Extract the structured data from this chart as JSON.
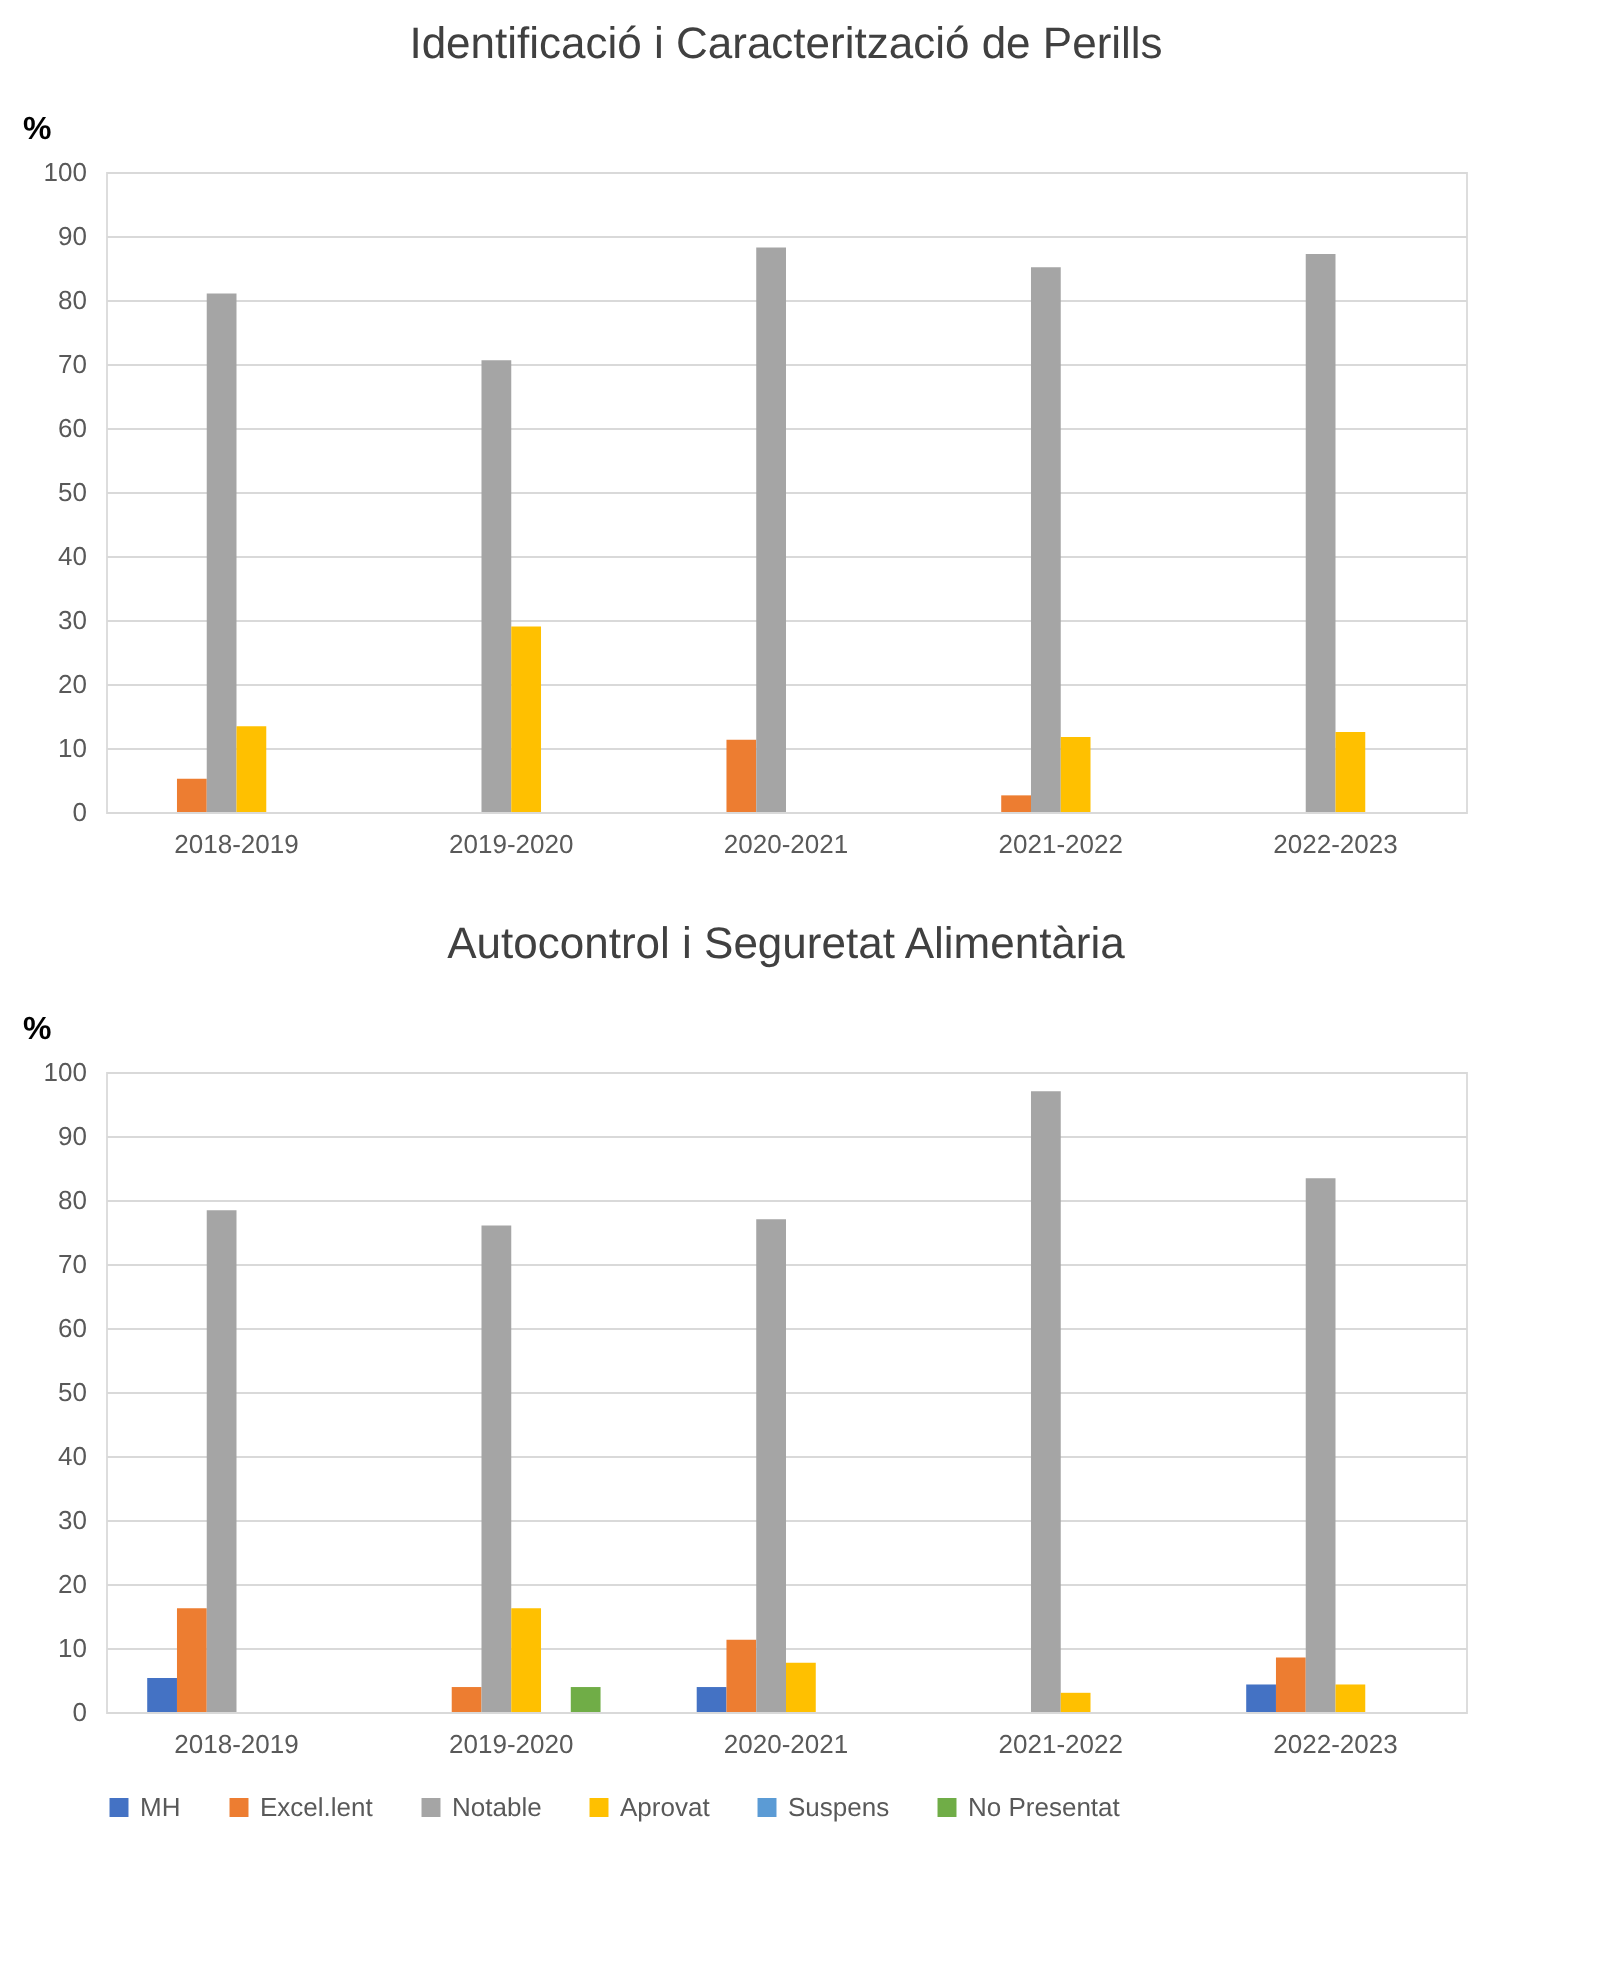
{
  "chart_data": [
    {
      "type": "bar",
      "title": "Identificació i Caracterització de Perills",
      "ylabel": "%",
      "categories": [
        "2018-2019",
        "2019-2020",
        "2020-2021",
        "2021-2022",
        "2022-2023"
      ],
      "ylim": [
        0,
        100
      ],
      "yticks": [
        0,
        10,
        20,
        30,
        40,
        50,
        60,
        70,
        80,
        90,
        100
      ],
      "grid": "y",
      "series": [
        {
          "color": "#4472c4",
          "values": [
            0,
            0,
            0,
            0,
            0
          ]
        },
        {
          "color": "#ed7d31",
          "values": [
            5.2,
            0,
            11.3,
            2.6,
            0
          ]
        },
        {
          "color": "#a5a5a5",
          "values": [
            81,
            70.6,
            88.2,
            85.1,
            87.2
          ]
        },
        {
          "color": "#ffc000",
          "values": [
            13.4,
            29,
            0,
            11.7,
            12.5
          ]
        },
        {
          "color": "#5b9bd5",
          "values": [
            0,
            0,
            0,
            0,
            0
          ]
        },
        {
          "color": "#70ad47",
          "values": [
            0,
            0,
            0,
            0,
            0
          ]
        }
      ]
    },
    {
      "type": "bar",
      "title": "Autocontrol i Seguretat Alimentària",
      "ylabel": "%",
      "categories": [
        "2018-2019",
        "2019-2020",
        "2020-2021",
        "2021-2022",
        "2022-2023"
      ],
      "ylim": [
        0,
        100
      ],
      "yticks": [
        0,
        10,
        20,
        30,
        40,
        50,
        60,
        70,
        80,
        90,
        100
      ],
      "grid": "y",
      "legend": "bottom",
      "series": [
        {
          "name": "MH",
          "color": "#4472c4",
          "values": [
            5.3,
            0,
            3.9,
            0,
            4.3
          ]
        },
        {
          "name": "Excel.lent",
          "color": "#ed7d31",
          "values": [
            16.2,
            3.9,
            11.3,
            0,
            8.5
          ]
        },
        {
          "name": "Notable",
          "color": "#a5a5a5",
          "values": [
            78.4,
            76,
            77,
            97,
            83.4
          ]
        },
        {
          "name": "Aprovat",
          "color": "#ffc000",
          "values": [
            0,
            16.2,
            7.7,
            3,
            4.3
          ]
        },
        {
          "name": "Suspens",
          "color": "#5b9bd5",
          "values": [
            0,
            0,
            0,
            0,
            0
          ]
        },
        {
          "name": "No Presentat",
          "color": "#70ad47",
          "values": [
            0,
            3.9,
            0,
            0,
            0
          ]
        }
      ]
    }
  ]
}
